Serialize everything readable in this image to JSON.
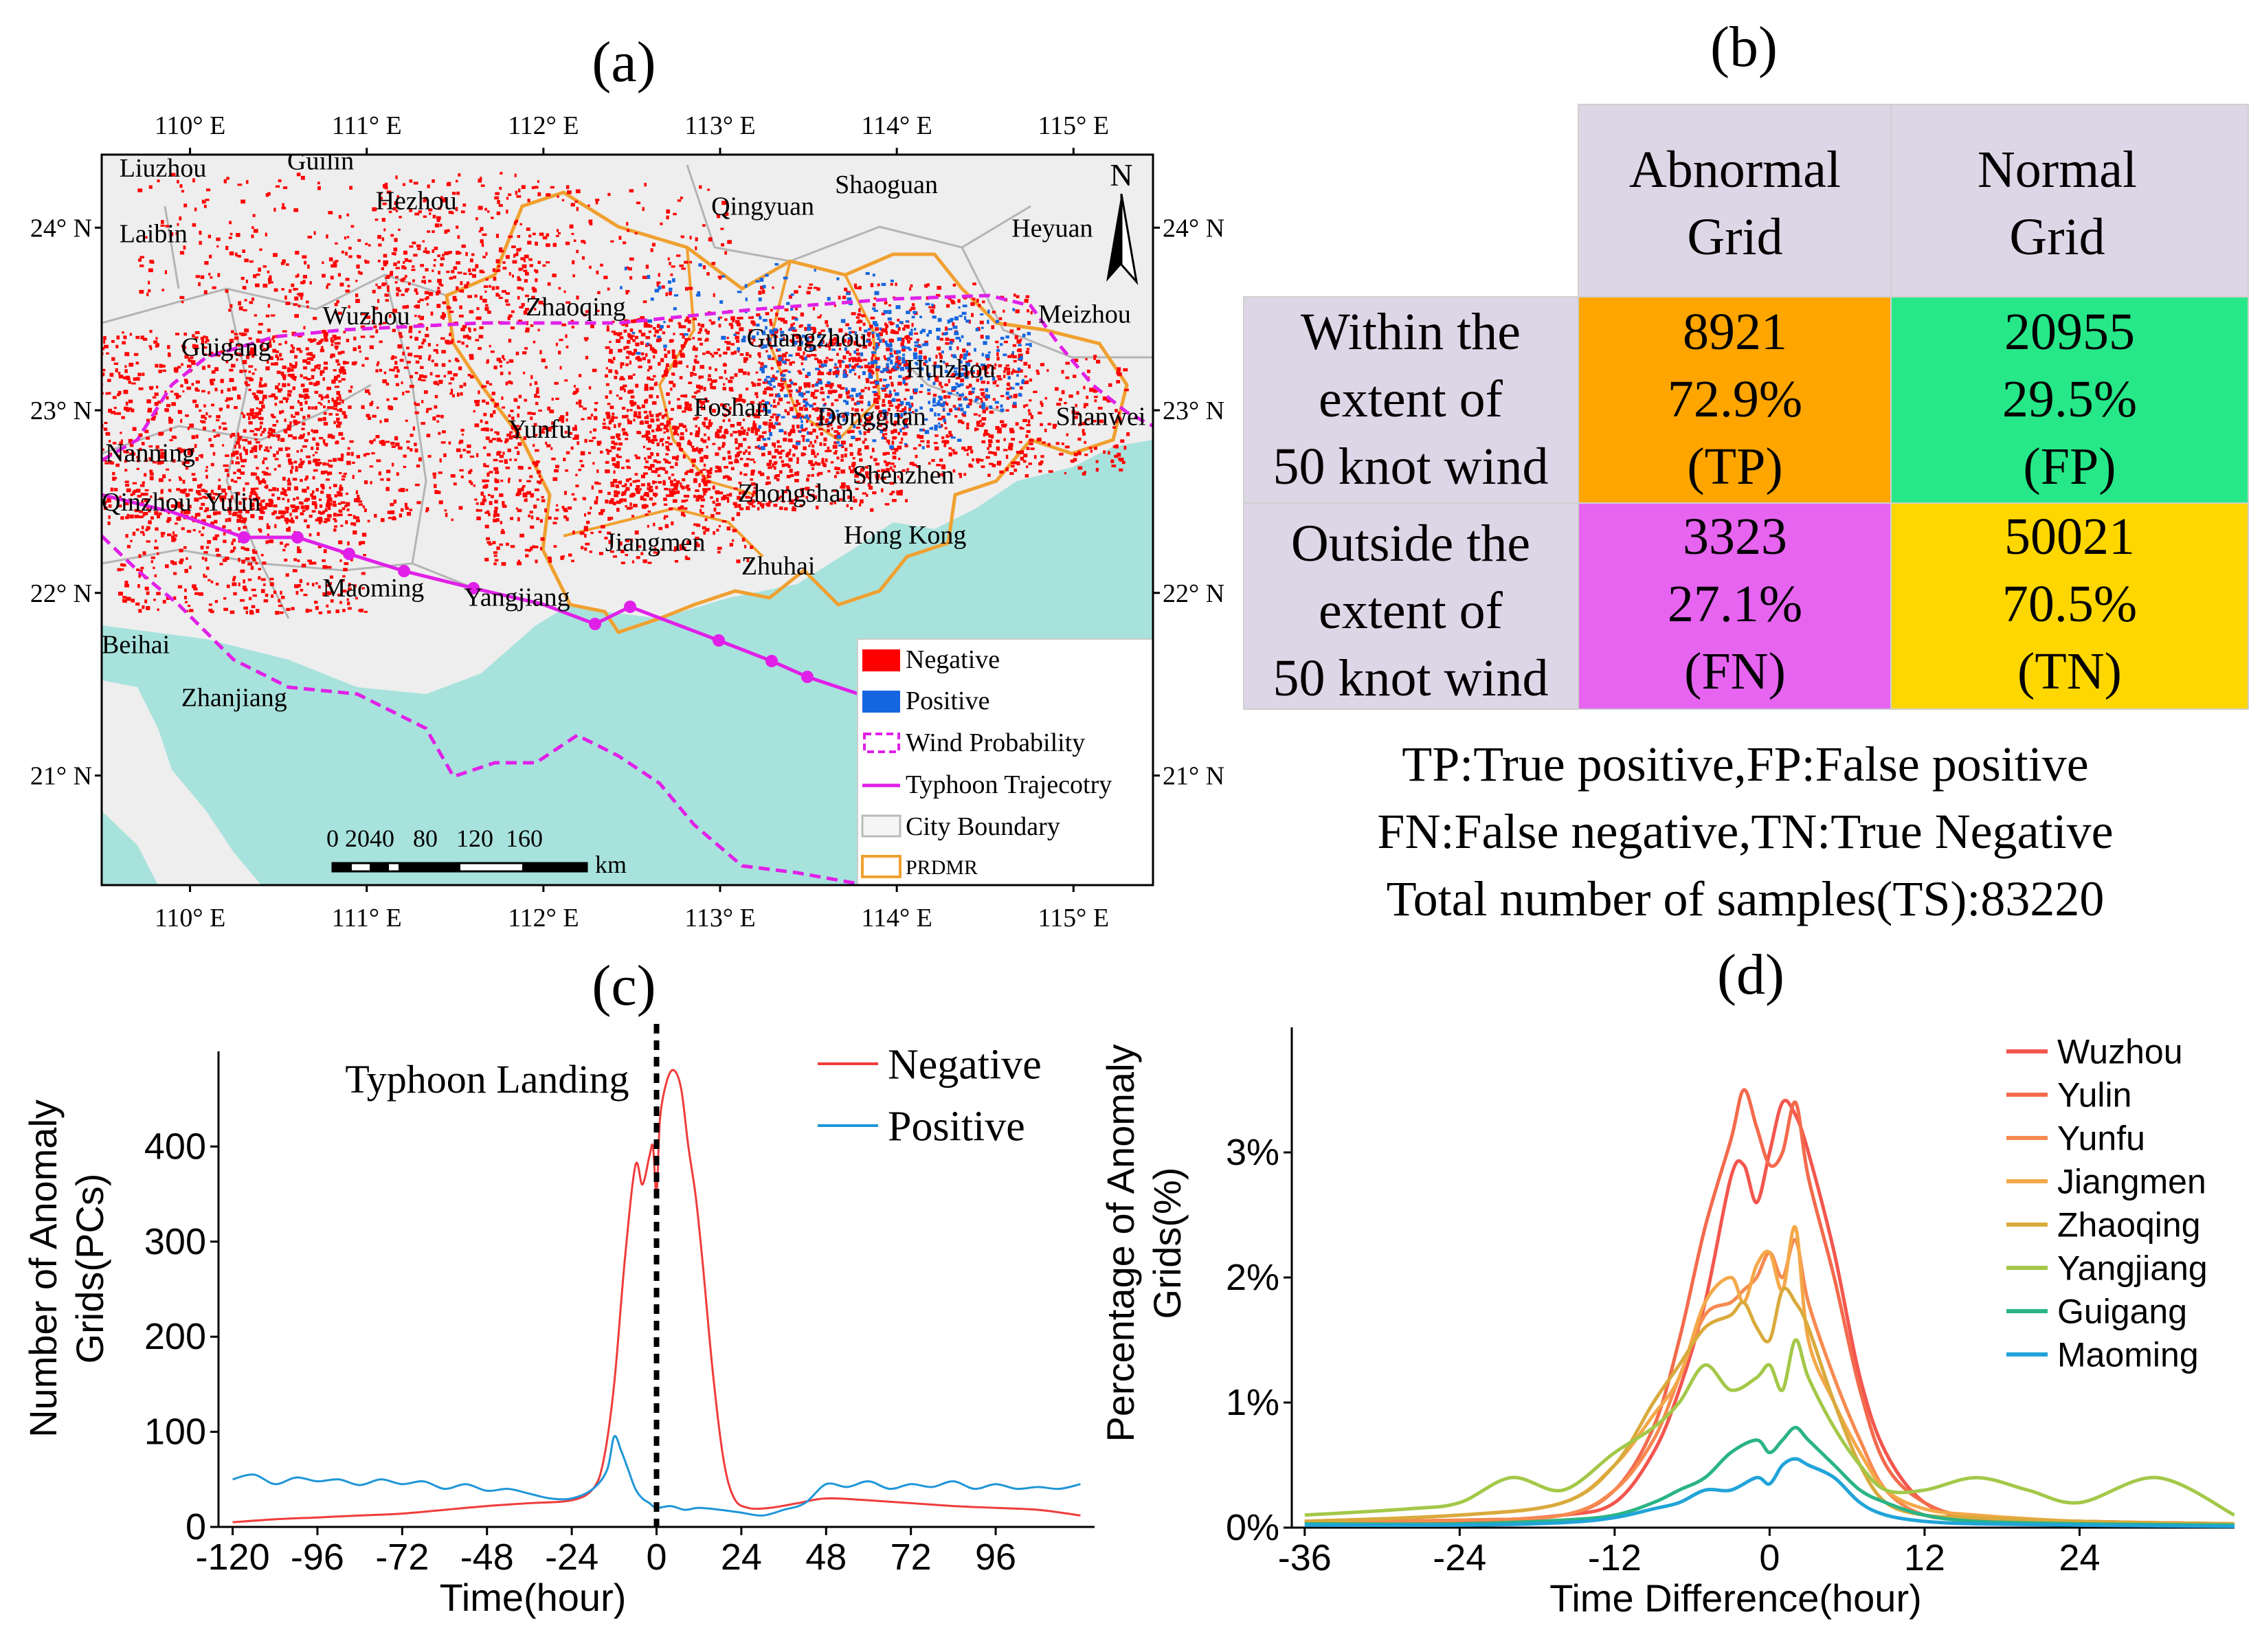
{
  "panels": {
    "a": "(a)",
    "b": "(b)",
    "c": "(c)",
    "d": "(d)"
  },
  "map": {
    "lon_ticks": [
      "110° E",
      "111° E",
      "112° E",
      "113° E",
      "114° E",
      "115° E"
    ],
    "lat_ticks": [
      "24° N",
      "23° N",
      "22° N",
      "21° N"
    ],
    "north_label": "N",
    "scale_numbers": "0 2040   80   120  160",
    "scale_unit": "km",
    "cities": [
      {
        "name": "Liuzhou",
        "lon": 109.6,
        "lat": 24.28
      },
      {
        "name": "Guilin",
        "lon": 110.55,
        "lat": 24.32
      },
      {
        "name": "Hezhou",
        "lon": 111.05,
        "lat": 24.1
      },
      {
        "name": "Laibin",
        "lon": 109.6,
        "lat": 23.92
      },
      {
        "name": "Qingyuan",
        "lon": 112.95,
        "lat": 24.07
      },
      {
        "name": "Shaoguan",
        "lon": 113.65,
        "lat": 24.19
      },
      {
        "name": "Heyuan",
        "lon": 114.65,
        "lat": 23.95
      },
      {
        "name": "Zhaoqing",
        "lon": 111.9,
        "lat": 23.52
      },
      {
        "name": "Wuzhou",
        "lon": 110.75,
        "lat": 23.47
      },
      {
        "name": "Meizhou",
        "lon": 114.8,
        "lat": 23.48
      },
      {
        "name": "Guigang",
        "lon": 109.95,
        "lat": 23.3
      },
      {
        "name": "Guangzhou",
        "lon": 113.15,
        "lat": 23.35
      },
      {
        "name": "Huizhou",
        "lon": 114.05,
        "lat": 23.18
      },
      {
        "name": "Foshan",
        "lon": 112.85,
        "lat": 22.97
      },
      {
        "name": "Dongguan",
        "lon": 113.55,
        "lat": 22.92
      },
      {
        "name": "Shanwei",
        "lon": 114.9,
        "lat": 22.92
      },
      {
        "name": "Yunfu",
        "lon": 111.8,
        "lat": 22.85
      },
      {
        "name": "Nanning",
        "lon": 109.52,
        "lat": 22.72
      },
      {
        "name": "Shenzhen",
        "lon": 113.75,
        "lat": 22.6
      },
      {
        "name": "Zhongshan",
        "lon": 113.1,
        "lat": 22.5
      },
      {
        "name": "Qinzhou",
        "lon": 109.5,
        "lat": 22.45
      },
      {
        "name": "Yulin",
        "lon": 110.08,
        "lat": 22.45
      },
      {
        "name": "Jiangmen",
        "lon": 112.35,
        "lat": 22.23
      },
      {
        "name": "Hong Kong",
        "lon": 113.7,
        "lat": 22.27
      },
      {
        "name": "Zhuhai",
        "lon": 113.12,
        "lat": 22.1
      },
      {
        "name": "Maoming",
        "lon": 110.75,
        "lat": 21.98
      },
      {
        "name": "Yangjiang",
        "lon": 111.55,
        "lat": 21.93
      },
      {
        "name": "Beihai",
        "lon": 109.5,
        "lat": 21.67
      },
      {
        "name": "Zhanjiang",
        "lon": 109.95,
        "lat": 21.38
      }
    ],
    "legend": [
      "Negative",
      "Positive",
      "Wind Probability",
      "Typhoon Trajecotry",
      "City Boundary",
      "PRDMR"
    ],
    "colors": {
      "negative": "#ff0000",
      "positive": "#1565e0",
      "wind": "#e020e8",
      "track": "#e020e8",
      "prdmr": "#f0a030",
      "sea": "#a8e2dc"
    }
  },
  "table": {
    "col_headers": [
      [
        "Abnormal",
        "Grid"
      ],
      [
        "Normal",
        "Grid"
      ]
    ],
    "rows": [
      {
        "header": [
          "Within the",
          "extent of",
          "50 knot wind"
        ],
        "cells": [
          {
            "count": "8921",
            "pct": "72.9%",
            "tag": "(TP)",
            "color": "#ffa500"
          },
          {
            "count": "20955",
            "pct": "29.5%",
            "tag": "(FP)",
            "color": "#26e888"
          }
        ]
      },
      {
        "header": [
          "Outside the",
          "extent of",
          "50 knot wind"
        ],
        "cells": [
          {
            "count": "3323",
            "pct": "27.1%",
            "tag": "(FN)",
            "color": "#e664f0"
          },
          {
            "count": "50021",
            "pct": "70.5%",
            "tag": "(TN)",
            "color": "#ffd700"
          }
        ]
      }
    ],
    "header_bg": "#ddd6e6",
    "notes": [
      "TP:True positive,FP:False positive",
      "FN:False negative,TN:True Negative",
      "Total number of samples(TS):83220"
    ]
  },
  "chart_data": [
    {
      "panel": "c",
      "type": "line",
      "xlabel": "Time(hour)",
      "ylabel": "Number of Anomaly\nGrids(PCs)",
      "xlim": [
        -124,
        124
      ],
      "ylim": [
        0,
        500
      ],
      "xticks": [
        -120,
        -96,
        -72,
        -48,
        -24,
        0,
        24,
        48,
        72,
        96
      ],
      "xtick_labels": [
        "-120",
        "-96",
        "-72",
        "-48",
        "-24",
        "0",
        "24",
        "48",
        "72",
        "96"
      ],
      "yticks": [
        0,
        100,
        200,
        300,
        400
      ],
      "ytick_labels": [
        "0",
        "100",
        "200",
        "300",
        "400"
      ],
      "annotation": "Typhoon Landing",
      "vline_x": 0,
      "series": [
        {
          "name": "Negative",
          "color": "#f03c3c",
          "x": [
            -120,
            -108,
            -96,
            -84,
            -72,
            -60,
            -48,
            -36,
            -24,
            -18,
            -15,
            -12,
            -9,
            -6,
            -4,
            -2,
            -1,
            0,
            1,
            3,
            5,
            7,
            9,
            11,
            13,
            16,
            19,
            22,
            26,
            32,
            40,
            48,
            60,
            72,
            84,
            96,
            108,
            120
          ],
          "y": [
            5,
            8,
            10,
            12,
            14,
            18,
            22,
            25,
            28,
            40,
            70,
            150,
            280,
            380,
            360,
            390,
            400,
            350,
            430,
            470,
            480,
            460,
            400,
            350,
            280,
            160,
            70,
            30,
            20,
            20,
            25,
            30,
            28,
            25,
            22,
            20,
            18,
            12
          ]
        },
        {
          "name": "Positive",
          "color": "#1f96d8",
          "x": [
            -120,
            -114,
            -108,
            -102,
            -96,
            -90,
            -84,
            -78,
            -72,
            -66,
            -60,
            -54,
            -48,
            -42,
            -36,
            -30,
            -24,
            -18,
            -14,
            -12,
            -10,
            -8,
            -6,
            -4,
            -2,
            0,
            4,
            8,
            12,
            18,
            24,
            30,
            36,
            42,
            48,
            54,
            60,
            66,
            72,
            78,
            84,
            90,
            96,
            102,
            108,
            114,
            120
          ],
          "y": [
            50,
            55,
            45,
            52,
            48,
            50,
            44,
            50,
            45,
            48,
            40,
            45,
            38,
            40,
            35,
            30,
            30,
            40,
            60,
            95,
            80,
            60,
            40,
            30,
            25,
            20,
            22,
            18,
            20,
            18,
            15,
            12,
            18,
            25,
            45,
            42,
            48,
            40,
            45,
            42,
            48,
            40,
            45,
            40,
            42,
            40,
            45
          ]
        }
      ]
    },
    {
      "panel": "d",
      "type": "line",
      "xlabel": "Time Difference(hour)",
      "ylabel": "Percentage of Anomaly\nGrids(%)",
      "xlim": [
        -37,
        36
      ],
      "ylim": [
        0,
        0.04
      ],
      "xticks": [
        -36,
        -24,
        -12,
        0,
        12,
        24
      ],
      "xtick_labels": [
        "-36",
        "-24",
        "-12",
        "0",
        "12",
        "24"
      ],
      "yticks": [
        0,
        0.01,
        0.02,
        0.03
      ],
      "ytick_labels": [
        "0%",
        "1%",
        "2%",
        "3%"
      ],
      "series": [
        {
          "name": "Wuzhou",
          "color": "#f3564e",
          "x": [
            -36,
            -24,
            -16,
            -12,
            -9,
            -7,
            -5,
            -3,
            -2,
            -1,
            0,
            1,
            2,
            3,
            5,
            7,
            9,
            12,
            16,
            24,
            36
          ],
          "y": [
            0.0005,
            0.0005,
            0.001,
            0.002,
            0.006,
            0.011,
            0.018,
            0.028,
            0.029,
            0.026,
            0.03,
            0.034,
            0.033,
            0.03,
            0.022,
            0.012,
            0.006,
            0.002,
            0.0008,
            0.0005,
            0.0003
          ]
        },
        {
          "name": "Yulin",
          "color": "#f46a4c",
          "x": [
            -36,
            -24,
            -16,
            -12,
            -9,
            -7,
            -5,
            -3,
            -2,
            -1,
            0,
            1,
            2,
            3,
            5,
            7,
            9,
            12,
            16,
            24,
            36
          ],
          "y": [
            0.0005,
            0.0006,
            0.001,
            0.003,
            0.008,
            0.015,
            0.024,
            0.031,
            0.035,
            0.032,
            0.029,
            0.03,
            0.034,
            0.028,
            0.02,
            0.011,
            0.005,
            0.002,
            0.0008,
            0.0005,
            0.0003
          ]
        },
        {
          "name": "Yunfu",
          "color": "#f78a50",
          "x": [
            -36,
            -24,
            -16,
            -12,
            -9,
            -7,
            -5,
            -3,
            -2,
            -1,
            0,
            1,
            2,
            3,
            5,
            7,
            9,
            12,
            16,
            24,
            36
          ],
          "y": [
            0.0005,
            0.0006,
            0.001,
            0.003,
            0.007,
            0.012,
            0.017,
            0.018,
            0.019,
            0.02,
            0.022,
            0.02,
            0.023,
            0.018,
            0.012,
            0.007,
            0.003,
            0.001,
            0.0007,
            0.0004,
            0.0003
          ]
        },
        {
          "name": "Jiangmen",
          "color": "#f4a848",
          "x": [
            -36,
            -24,
            -16,
            -12,
            -9,
            -7,
            -5,
            -3,
            -2,
            -1,
            0,
            1,
            2,
            3,
            5,
            7,
            9,
            12,
            16,
            24,
            36
          ],
          "y": [
            0.0005,
            0.001,
            0.002,
            0.005,
            0.009,
            0.012,
            0.018,
            0.02,
            0.018,
            0.021,
            0.022,
            0.019,
            0.024,
            0.015,
            0.01,
            0.006,
            0.003,
            0.0015,
            0.001,
            0.0005,
            0.0003
          ]
        },
        {
          "name": "Zhaoqing",
          "color": "#d9aa3c",
          "x": [
            -36,
            -24,
            -16,
            -12,
            -9,
            -7,
            -5,
            -3,
            -2,
            -1,
            0,
            1,
            2,
            3,
            5,
            7,
            9,
            12,
            16,
            24,
            36
          ],
          "y": [
            0.0005,
            0.001,
            0.002,
            0.005,
            0.01,
            0.013,
            0.016,
            0.017,
            0.018,
            0.016,
            0.015,
            0.019,
            0.018,
            0.016,
            0.01,
            0.005,
            0.002,
            0.001,
            0.0008,
            0.0005,
            0.0003
          ]
        },
        {
          "name": "Yangjiang",
          "color": "#a3c848",
          "x": [
            -36,
            -28,
            -24,
            -20,
            -16,
            -12,
            -9,
            -7,
            -5,
            -3,
            -1,
            0,
            1,
            2,
            3,
            5,
            7,
            9,
            12,
            16,
            20,
            24,
            30,
            36
          ],
          "y": [
            0.001,
            0.0015,
            0.002,
            0.004,
            0.003,
            0.006,
            0.008,
            0.01,
            0.013,
            0.011,
            0.012,
            0.013,
            0.011,
            0.015,
            0.012,
            0.008,
            0.005,
            0.003,
            0.003,
            0.004,
            0.003,
            0.002,
            0.004,
            0.001
          ]
        },
        {
          "name": "Guigang",
          "color": "#2ab486",
          "x": [
            -36,
            -24,
            -16,
            -12,
            -9,
            -7,
            -5,
            -3,
            -1,
            0,
            1,
            2,
            3,
            5,
            7,
            9,
            12,
            16,
            24,
            36
          ],
          "y": [
            0.0003,
            0.0003,
            0.0006,
            0.001,
            0.002,
            0.003,
            0.004,
            0.006,
            0.007,
            0.006,
            0.007,
            0.008,
            0.007,
            0.005,
            0.003,
            0.002,
            0.001,
            0.0005,
            0.0003,
            0.0002
          ]
        },
        {
          "name": "Maoming",
          "color": "#21a4d8",
          "x": [
            -36,
            -24,
            -16,
            -12,
            -9,
            -7,
            -5,
            -3,
            -1,
            0,
            1,
            2,
            3,
            5,
            7,
            9,
            12,
            16,
            24,
            36
          ],
          "y": [
            0.0002,
            0.0002,
            0.0004,
            0.0008,
            0.0015,
            0.002,
            0.003,
            0.003,
            0.004,
            0.0035,
            0.005,
            0.0055,
            0.005,
            0.004,
            0.002,
            0.001,
            0.0005,
            0.0003,
            0.0002,
            0.0001
          ]
        }
      ]
    }
  ]
}
